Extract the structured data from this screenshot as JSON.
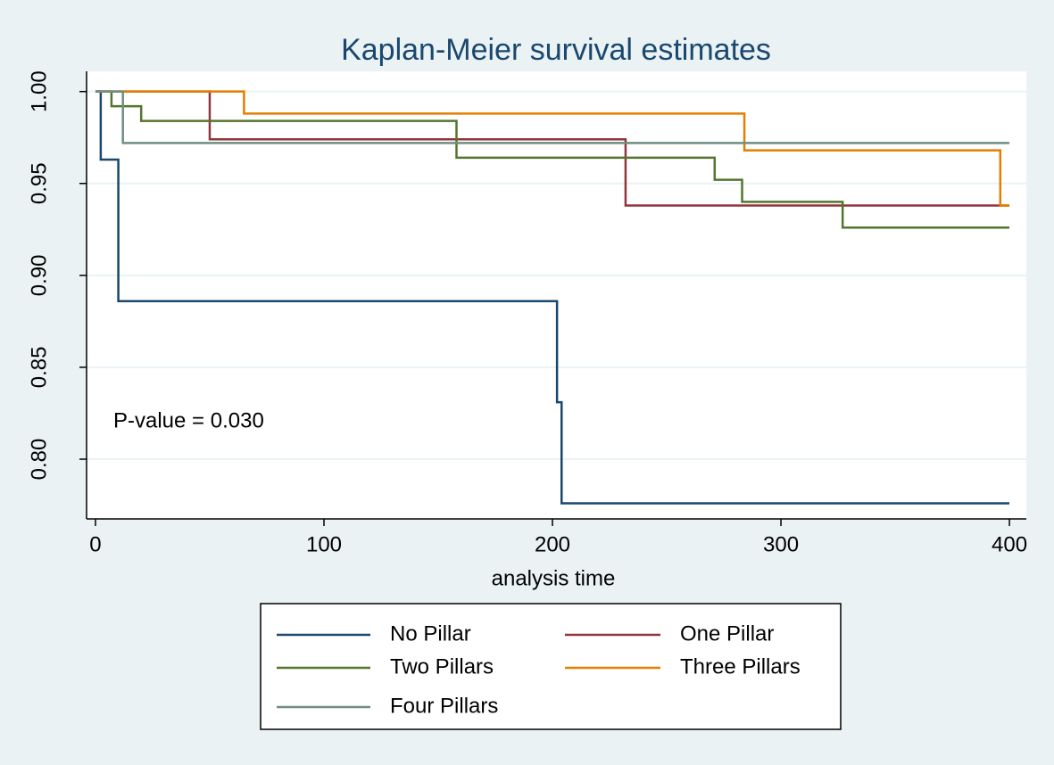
{
  "chart_data": {
    "type": "step",
    "title": "Kaplan-Meier survival estimates",
    "x_label": "analysis time",
    "annotation": "P-value = 0.030",
    "xlim": [
      -3.9,
      407.4
    ],
    "ylim": [
      0.7675,
      1.011
    ],
    "xticks": [
      0,
      100,
      200,
      300,
      400
    ],
    "yticks": [
      {
        "value": 1,
        "label": "1.00"
      },
      0.95,
      {
        "value": 0.9,
        "label": "0.90"
      },
      0.85,
      {
        "value": 0.8,
        "label": "0.80"
      }
    ],
    "grid": true,
    "legend": "bottom",
    "series": [
      {
        "name": "No Pillar",
        "color": "#1a476f",
        "x": [
          0,
          2.3,
          10,
          202,
          204,
          400
        ],
        "values": [
          1,
          0.963,
          0.886,
          0.831,
          0.776,
          0.776
        ]
      },
      {
        "name": "One Pillar",
        "color": "#90353b",
        "x": [
          0,
          50,
          232,
          400
        ],
        "values": [
          1,
          0.974,
          0.938,
          0.938
        ]
      },
      {
        "name": "Two Pillars",
        "color": "#55752f",
        "x": [
          0,
          7,
          20,
          158,
          271,
          283,
          327,
          400
        ],
        "values": [
          1,
          0.992,
          0.984,
          0.964,
          0.952,
          0.94,
          0.926,
          0.926
        ]
      },
      {
        "name": "Three Pillars",
        "color": "#e37e00",
        "x": [
          0,
          65,
          284,
          396,
          400
        ],
        "values": [
          1,
          0.988,
          0.968,
          0.938,
          0.938
        ]
      },
      {
        "name": "Four Pillars",
        "color": "#6e8e84",
        "x": [
          0,
          12,
          400
        ],
        "values": [
          1,
          0.972,
          0.972
        ]
      }
    ]
  }
}
